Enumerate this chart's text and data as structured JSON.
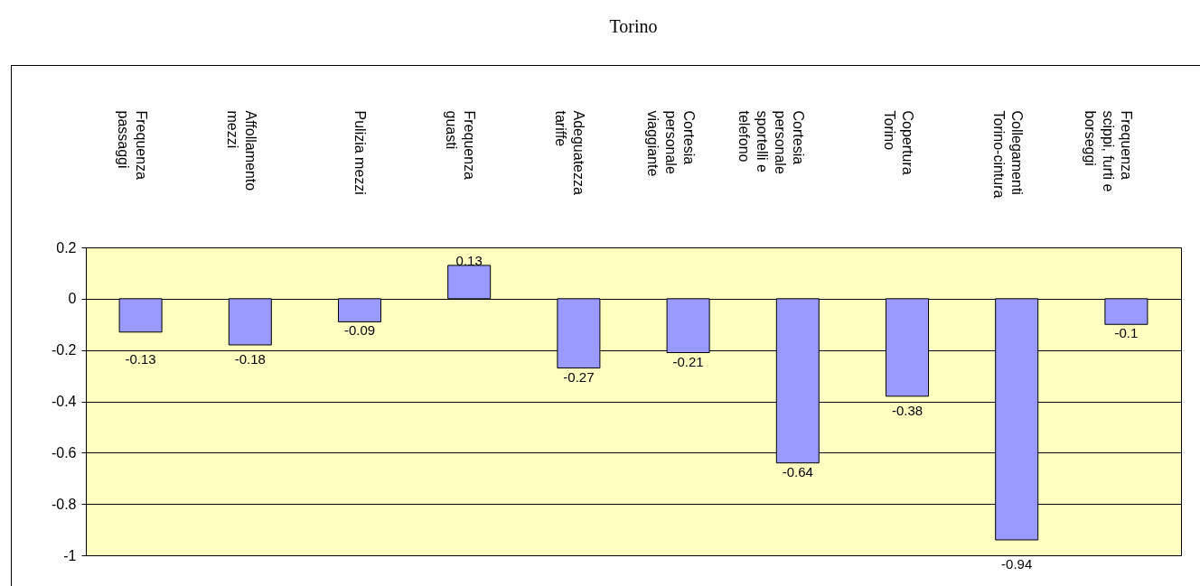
{
  "chart_data": {
    "type": "bar",
    "title": "Torino",
    "categories": [
      "Frequenza passaggi",
      "Affollamento mezzi",
      "Pulizia mezzi",
      "Frequenza guasti",
      "Adeguatezza tariffe",
      "Cortesia personale viaggiante",
      "Cortesia personale sportelli e telefono",
      "Copertura Torino",
      "Collegamenti Torino-cintura",
      "Frequenza scippi, furti e borseggi"
    ],
    "values": [
      -0.13,
      -0.18,
      -0.09,
      0.13,
      -0.27,
      -0.21,
      -0.64,
      -0.38,
      -0.94,
      -0.1
    ],
    "color": "#9999ff",
    "ylim": [
      -1,
      0.2
    ],
    "yticks": [
      -1,
      -0.8,
      -0.6,
      -0.4,
      -0.2,
      0,
      0.2
    ],
    "grid": "y",
    "data_labels": true
  }
}
